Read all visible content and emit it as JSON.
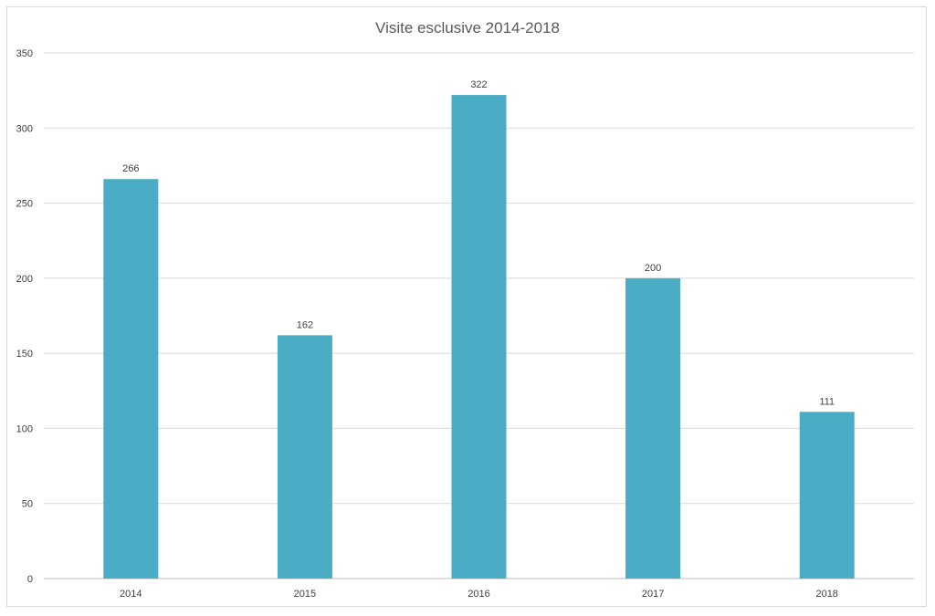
{
  "chart_data": {
    "type": "bar",
    "title": "Visite esclusive 2014-2018",
    "categories": [
      "2014",
      "2015",
      "2016",
      "2017",
      "2018"
    ],
    "values": [
      266,
      162,
      322,
      200,
      111
    ],
    "data_labels": [
      "266",
      "162",
      "322",
      "200",
      "111"
    ],
    "xlabel": "",
    "ylabel": "",
    "ylim": [
      0,
      350
    ],
    "yticks": [
      "0",
      "50",
      "100",
      "150",
      "200",
      "250",
      "300",
      "350"
    ],
    "grid": true,
    "legend": "none",
    "bar_color": "#4BACC6"
  }
}
